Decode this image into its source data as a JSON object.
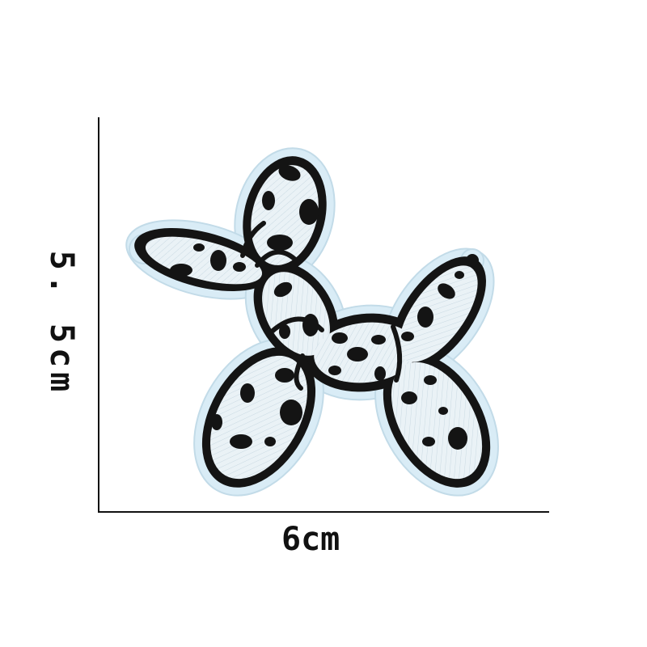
{
  "dimensions": {
    "width_label": "6cm",
    "height_label": "5. 5cm"
  },
  "patch": {
    "subject": "balloon-dog-embroidered-patch",
    "pattern": "cow-print",
    "colors": {
      "border": "#d9ecf6",
      "fabric": "#eaf2f6",
      "stitch": "#141414",
      "axis": "#111111"
    }
  }
}
